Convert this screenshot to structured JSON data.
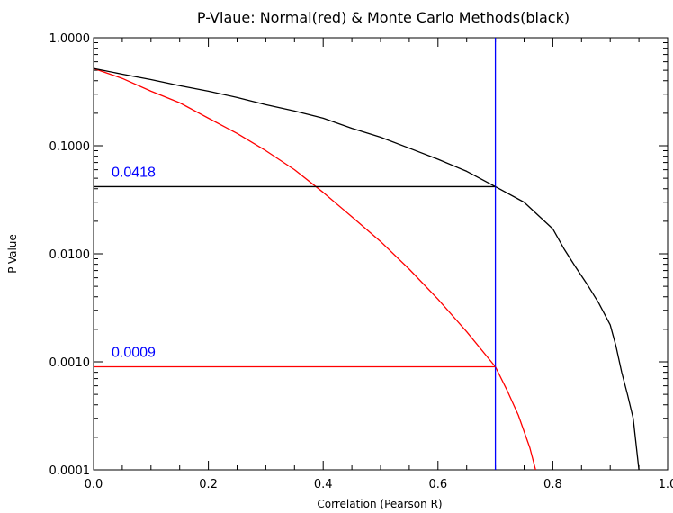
{
  "chart_data": {
    "type": "line",
    "title": "P-Vlaue: Normal(red) & Monte Carlo Methods(black)",
    "xlabel": "Correlation (Pearson R)",
    "ylabel": "P-Value",
    "xlim": [
      0.0,
      1.0
    ],
    "ylim": [
      0.0001,
      1.0
    ],
    "yscale": "log",
    "grid": false,
    "x_ticks": [
      "0.0",
      "0.2",
      "0.4",
      "0.6",
      "0.8",
      "1.0"
    ],
    "y_ticks": [
      "0.0001",
      "0.0010",
      "0.0100",
      "0.1000",
      "1.0000"
    ],
    "series": [
      {
        "color": "#ff0000",
        "x": [
          0.0,
          0.05,
          0.1,
          0.15,
          0.2,
          0.25,
          0.3,
          0.35,
          0.4,
          0.45,
          0.5,
          0.55,
          0.6,
          0.65,
          0.7,
          0.72,
          0.74,
          0.76,
          0.77
        ],
        "y": [
          0.52,
          0.42,
          0.32,
          0.25,
          0.18,
          0.13,
          0.09,
          0.06,
          0.037,
          0.022,
          0.013,
          0.0072,
          0.0038,
          0.0019,
          0.0009,
          0.00055,
          0.00032,
          0.00016,
          0.0001
        ]
      },
      {
        "color": "#000000",
        "x": [
          0.0,
          0.05,
          0.1,
          0.15,
          0.2,
          0.25,
          0.3,
          0.35,
          0.4,
          0.45,
          0.5,
          0.55,
          0.6,
          0.65,
          0.7,
          0.75,
          0.8,
          0.82,
          0.84,
          0.86,
          0.88,
          0.9,
          0.91,
          0.92,
          0.93,
          0.94,
          0.95
        ],
        "y": [
          0.52,
          0.46,
          0.41,
          0.36,
          0.32,
          0.28,
          0.24,
          0.21,
          0.18,
          0.145,
          0.12,
          0.095,
          0.075,
          0.058,
          0.0418,
          0.03,
          0.017,
          0.011,
          0.0075,
          0.0052,
          0.0035,
          0.0022,
          0.0014,
          0.0008,
          0.0005,
          0.0003,
          0.0001
        ]
      }
    ],
    "vertical_line": {
      "x": 0.7,
      "color": "#0000ff"
    },
    "annotations": [
      {
        "text": "0.0418",
        "x": 0.7,
        "y": 0.0418,
        "color": "#0000ff",
        "line_color": "#000000"
      },
      {
        "text": "0.0009",
        "x": 0.7,
        "y": 0.0009,
        "color": "#0000ff",
        "line_color": "#ff0000"
      }
    ]
  }
}
